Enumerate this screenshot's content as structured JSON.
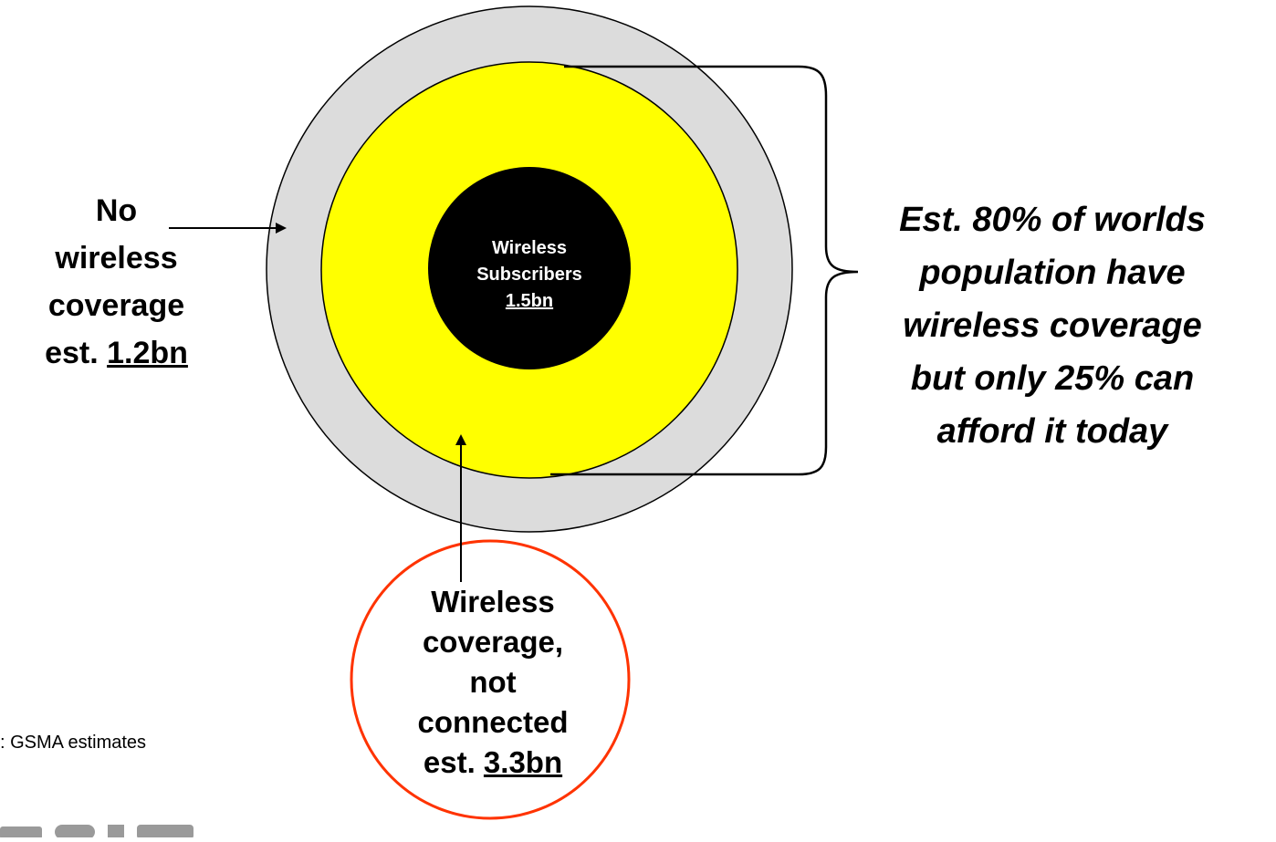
{
  "diagram": {
    "outer_ring_color": "#dcdcdc",
    "middle_ring_color": "#ffff00",
    "core_color": "#000000",
    "callout_ring_color": "#ff3300",
    "no_coverage": {
      "line1": "No",
      "line2": "wireless",
      "line3": "coverage",
      "prefix": "est. ",
      "value": "1.2bn"
    },
    "subscribers": {
      "line1": "Wireless",
      "line2": "Subscribers",
      "value": "1.5bn"
    },
    "not_connected": {
      "line1": "Wireless",
      "line2": "coverage,",
      "line3": "not",
      "line4": "connected",
      "prefix": "est. ",
      "value": "3.3bn"
    },
    "coverage_note": {
      "line1": "Est. 80% of worlds",
      "line2": "population have",
      "line3": "wireless coverage",
      "line4": "but only 25% can",
      "line5": "afford it today"
    },
    "source": ": GSMA estimates"
  }
}
